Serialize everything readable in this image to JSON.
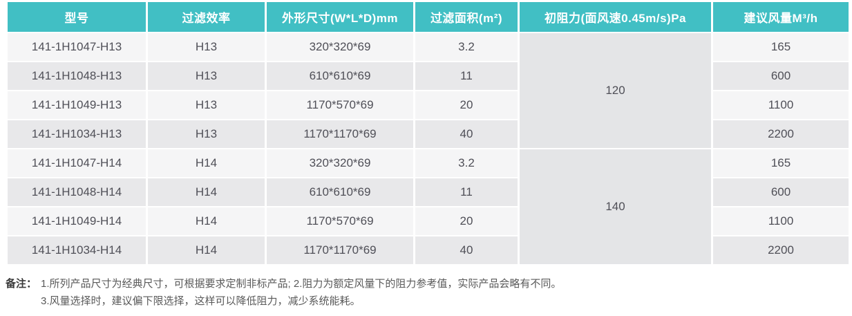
{
  "colors": {
    "accent": "#41bfc4",
    "row_light": "#f5f5f6",
    "row_gray": "#e8e8ea",
    "merged_cell": "#e4e5e7",
    "header_text": "#ffffff",
    "cell_text": "#4f4f57"
  },
  "table": {
    "headers": [
      {
        "key": "model",
        "label": "型号"
      },
      {
        "key": "efficiency",
        "label": "过滤效率"
      },
      {
        "key": "dimensions",
        "label": "外形尺寸(W*L*D)mm"
      },
      {
        "key": "area",
        "label": "过滤面积(m²)"
      },
      {
        "key": "resistance",
        "label": "初阻力(面风速0.45m/s)Pa"
      },
      {
        "key": "airflow",
        "label": "建议风量M³/h"
      }
    ],
    "groups": [
      {
        "resistance": "120",
        "rows": [
          {
            "model": "141-1H1047-H13",
            "efficiency": "H13",
            "dimensions": "320*320*69",
            "area": "3.2",
            "airflow": "165"
          },
          {
            "model": "141-1H1048-H13",
            "efficiency": "H13",
            "dimensions": "610*610*69",
            "area": "11",
            "airflow": "600"
          },
          {
            "model": "141-1H1049-H13",
            "efficiency": "H13",
            "dimensions": "1170*570*69",
            "area": "20",
            "airflow": "1100"
          },
          {
            "model": "141-1H1034-H13",
            "efficiency": "H13",
            "dimensions": "1170*1170*69",
            "area": "40",
            "airflow": "2200"
          }
        ]
      },
      {
        "resistance": "140",
        "rows": [
          {
            "model": "141-1H1047-H14",
            "efficiency": "H14",
            "dimensions": "320*320*69",
            "area": "3.2",
            "airflow": "165"
          },
          {
            "model": "141-1H1048-H14",
            "efficiency": "H14",
            "dimensions": "610*610*69",
            "area": "11",
            "airflow": "600"
          },
          {
            "model": "141-1H1049-H14",
            "efficiency": "H14",
            "dimensions": "1170*570*69",
            "area": "20",
            "airflow": "1100"
          },
          {
            "model": "141-1H1034-H14",
            "efficiency": "H14",
            "dimensions": "1170*1170*69",
            "area": "40",
            "airflow": "2200"
          }
        ]
      }
    ]
  },
  "notes": {
    "label": "备注：",
    "line1": "1.所列产品尺寸为经典尺寸，可根据要求定制非标产品; 2.阻力为额定风量下的阻力参考值，实际产品会略有不同。",
    "line2": "3.风量选择时，建议偏下限选择，这样可以降低阻力，减少系统能耗。"
  }
}
